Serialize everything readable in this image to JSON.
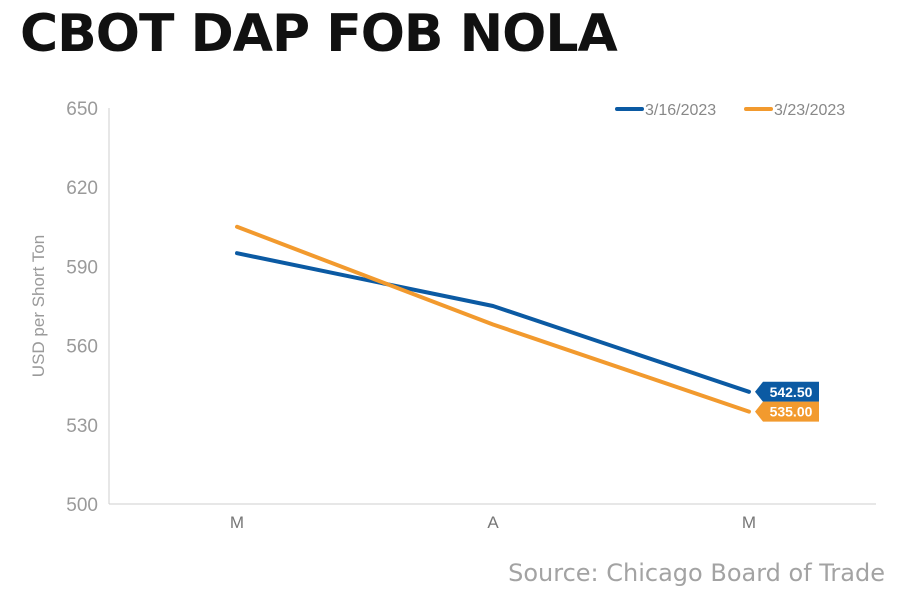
{
  "title": "CBOT DAP FOB NOLA",
  "source": "Source: Chicago Board of Trade",
  "chart_data": {
    "type": "line",
    "title": "CBOT DAP FOB NOLA",
    "categories": [
      "M",
      "A",
      "M"
    ],
    "ylabel": "USD per Short Ton",
    "xlabel": "",
    "ylim": [
      500,
      650
    ],
    "yticks": [
      500,
      530,
      560,
      590,
      620,
      650
    ],
    "grid": false,
    "legend_position": "top-right",
    "series": [
      {
        "name": "3/16/2023",
        "color": "#0b5aa3",
        "values": [
          595,
          575,
          542.5
        ],
        "end_label": "542.50"
      },
      {
        "name": "3/23/2023",
        "color": "#f29a2e",
        "values": [
          605,
          568,
          535
        ],
        "end_label": "535.00"
      }
    ]
  }
}
